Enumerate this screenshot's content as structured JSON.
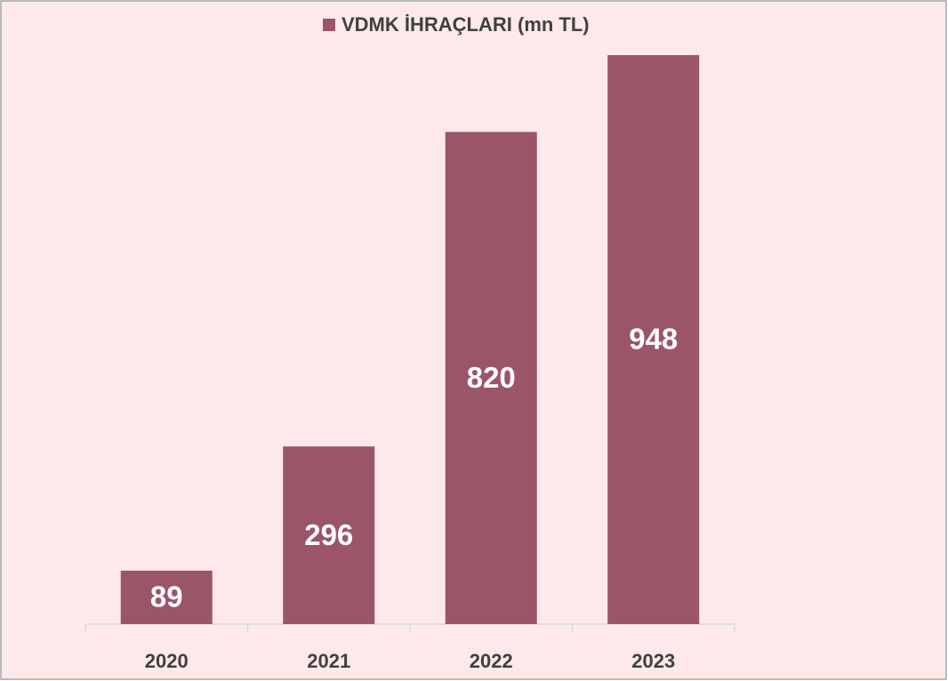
{
  "chart_data": {
    "type": "bar",
    "categories": [
      "2020",
      "2021",
      "2022",
      "2023"
    ],
    "series": [
      {
        "name": "VDMK İHRAÇLARI (mn TL)",
        "color": "#9b5568",
        "values": [
          89,
          296,
          820,
          948
        ]
      }
    ],
    "legend": "top"
  }
}
